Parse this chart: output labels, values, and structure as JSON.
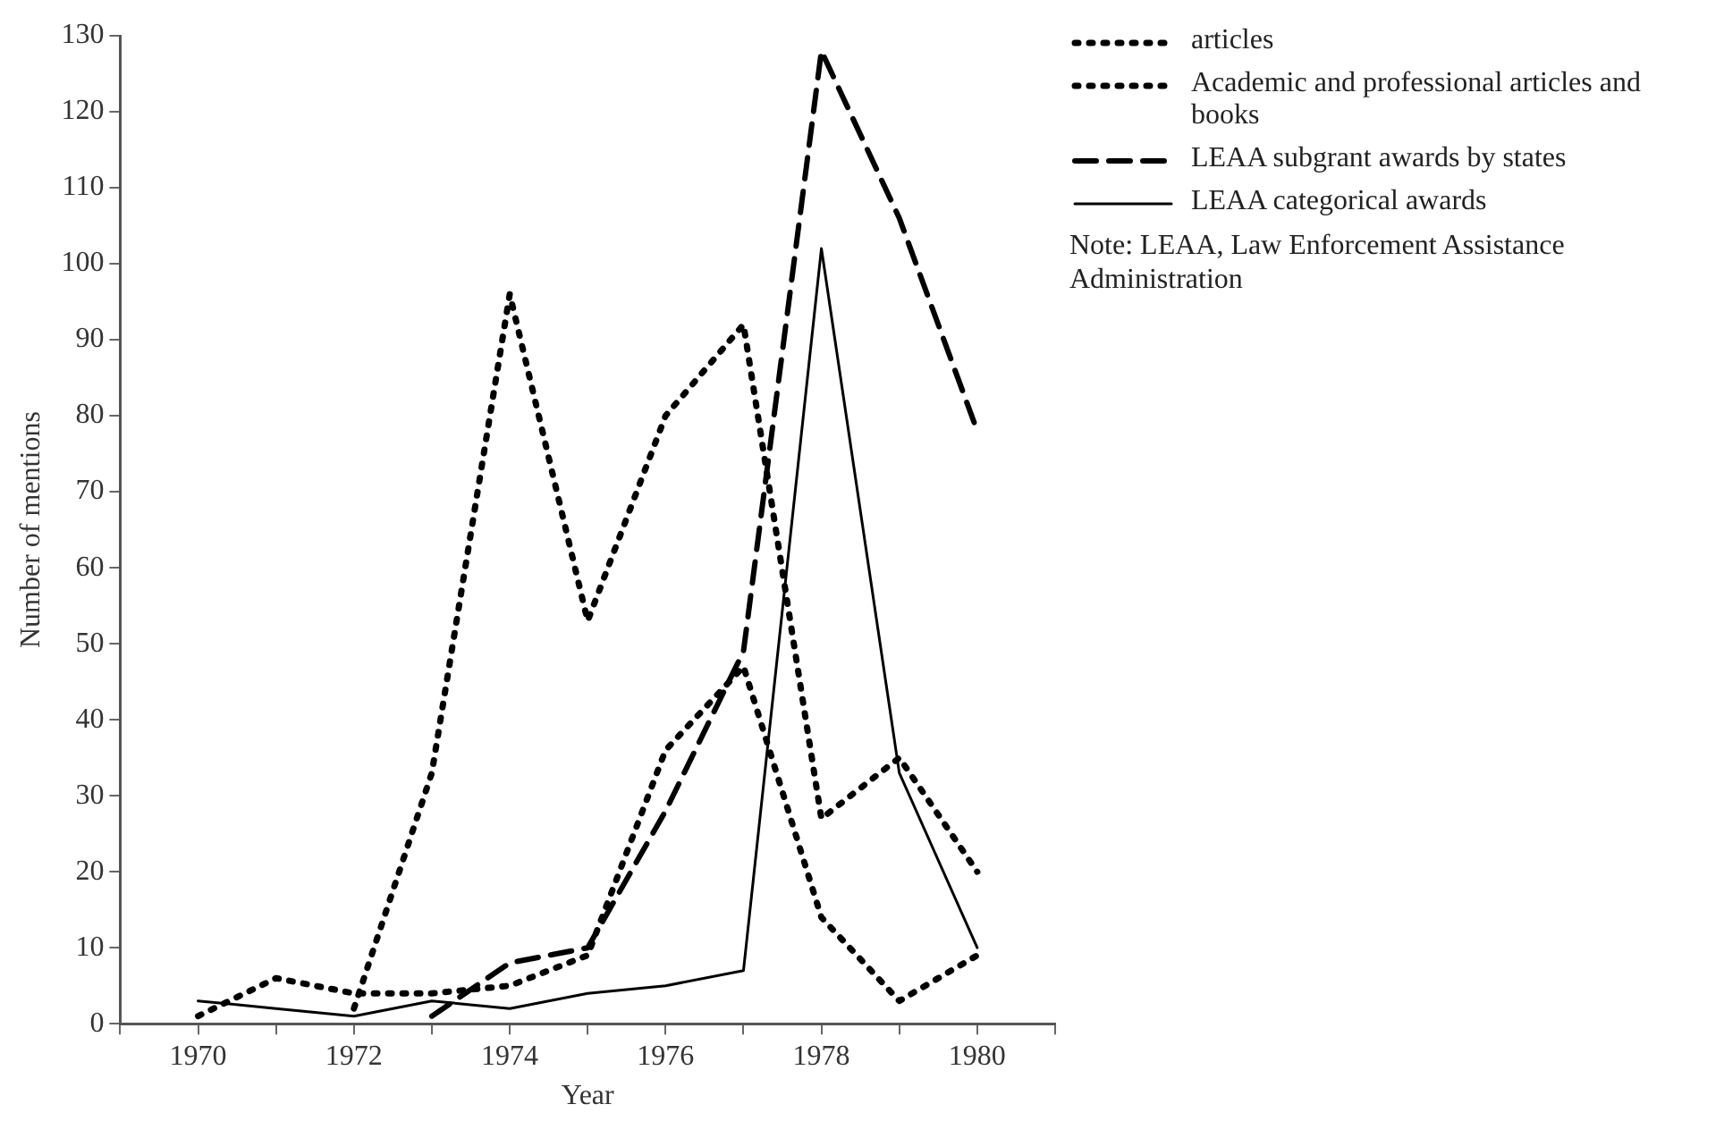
{
  "chart_data": {
    "type": "line",
    "xlabel": "Year",
    "ylabel": "Number of mentions",
    "x": [
      1970,
      1971,
      1972,
      1973,
      1974,
      1975,
      1976,
      1977,
      1978,
      1979,
      1980
    ],
    "series": [
      {
        "name": "articles",
        "color": "#000000",
        "line_style": "dotted",
        "values": [
          null,
          null,
          2,
          33,
          96,
          53,
          80,
          92,
          27,
          35,
          20
        ]
      },
      {
        "name": "Academic and professional articles and books",
        "color": "#000000",
        "line_style": "dotted",
        "values": [
          1,
          6,
          4,
          4,
          5,
          9,
          36,
          47,
          14,
          3,
          9
        ]
      },
      {
        "name": "LEAA subgrant awards by states",
        "color": "#000000",
        "line_style": "dashed",
        "values": [
          null,
          null,
          null,
          1,
          8,
          10,
          28,
          49,
          128,
          106,
          78
        ]
      },
      {
        "name": "LEAA categorical awards",
        "color": "#000000",
        "line_style": "solid",
        "values": [
          3,
          2,
          1,
          3,
          2,
          4,
          5,
          7,
          102,
          33,
          10
        ]
      }
    ],
    "xlim": [
      1969,
      1981
    ],
    "xticks": [
      {
        "value": 1969,
        "label": null
      },
      1970,
      {
        "value": 1971,
        "label": null
      },
      1972,
      {
        "value": 1973,
        "label": null
      },
      1974,
      {
        "value": 1975,
        "label": null
      },
      1976,
      {
        "value": 1977,
        "label": null
      },
      1978,
      {
        "value": 1979,
        "label": null
      },
      1980,
      {
        "value": 1981,
        "label": null
      }
    ],
    "ylim": [
      0,
      130
    ],
    "yticks": [
      0,
      10,
      20,
      30,
      40,
      50,
      60,
      70,
      80,
      90,
      100,
      110,
      120,
      130
    ],
    "grid": false,
    "legend": "top right",
    "marker": "none",
    "annotations": [
      "Note: LEAA, Law Enforcement Assistance Administration"
    ]
  }
}
